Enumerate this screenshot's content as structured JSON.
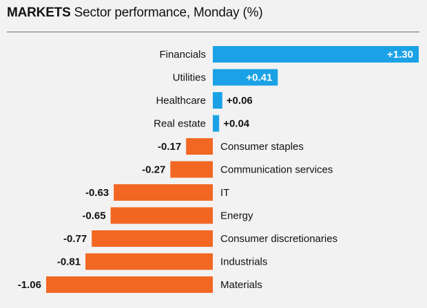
{
  "header": {
    "kicker": "MARKETS",
    "title": "Sector performance, Monday (%)"
  },
  "colors": {
    "positive": "#1ba2e6",
    "negative": "#f26722",
    "background": "#f2f2f2",
    "rule": "#6a6a6a"
  },
  "chart_data": {
    "type": "bar",
    "orientation": "horizontal",
    "title": "Sector performance, Monday (%)",
    "categories": [
      "Financials",
      "Utilities",
      "Healthcare",
      "Real estate",
      "Consumer staples",
      "Communication services",
      "IT",
      "Energy",
      "Consumer discretionaries",
      "Industrials",
      "Materials"
    ],
    "values": [
      1.3,
      0.41,
      0.06,
      0.04,
      -0.17,
      -0.27,
      -0.63,
      -0.65,
      -0.77,
      -0.81,
      -1.06
    ],
    "value_labels": [
      "+1.30",
      "+0.41",
      "+0.06",
      "+0.04",
      "-0.17",
      "-0.27",
      "-0.63",
      "-0.65",
      "-0.77",
      "-0.81",
      "-1.06"
    ],
    "xlim": [
      -1.06,
      1.3
    ],
    "grid": false,
    "legend": "none"
  }
}
